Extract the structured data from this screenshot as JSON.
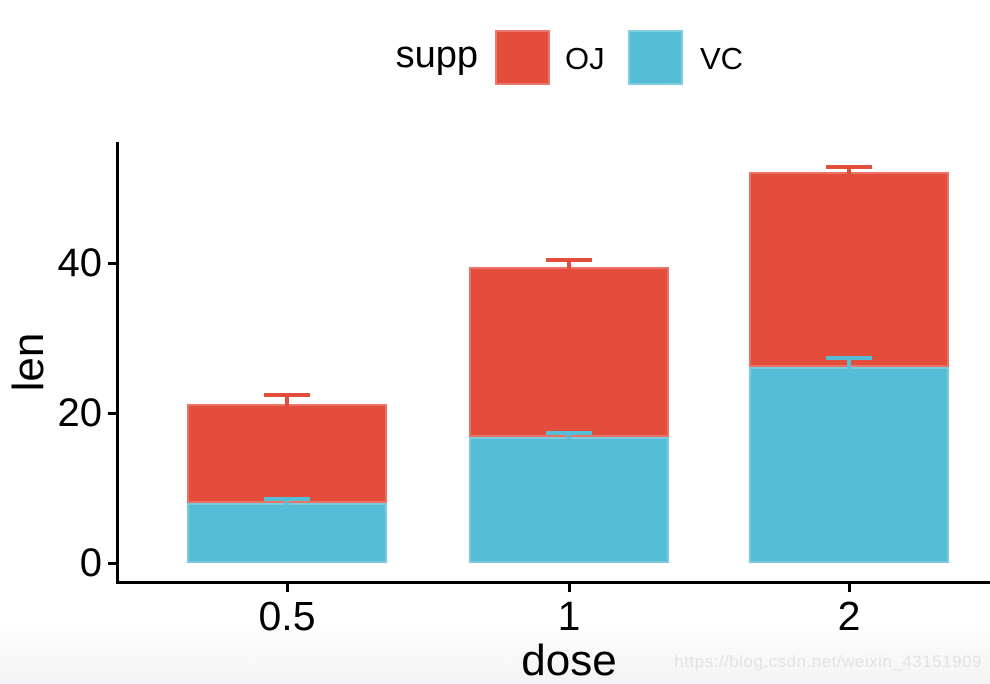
{
  "figure": {
    "background": "#ffffff",
    "watermark": "https://blog.csdn.net/weixin_43151909"
  },
  "legend": {
    "title": "supp",
    "entries": [
      {
        "label": "OJ",
        "color": "#E34D3C"
      },
      {
        "label": "VC",
        "color": "#55BDD5"
      }
    ]
  },
  "axes": {
    "x_title": "dose",
    "y_title": "len",
    "x_tick_labels": [
      "0.5",
      "1",
      "2"
    ],
    "y_tick_values": [
      0,
      20,
      40
    ],
    "axis_color": "#000000",
    "text_color": "#000000"
  },
  "chart_data": {
    "type": "bar",
    "stacked": true,
    "title": "",
    "xlabel": "dose",
    "ylabel": "len",
    "categories": [
      "0.5",
      "1",
      "2"
    ],
    "series": [
      {
        "name": "VC",
        "color": "#55BDD5",
        "values": [
          7.98,
          16.77,
          26.14
        ],
        "se": [
          0.87,
          0.8,
          1.52
        ]
      },
      {
        "name": "OJ",
        "color": "#E34D3C",
        "values": [
          13.23,
          22.7,
          26.06
        ],
        "se": [
          1.41,
          1.24,
          0.84
        ]
      }
    ],
    "stack_totals": [
      21.21,
      39.47,
      52.2
    ],
    "error_bar_style": "cap at segment top + standard error, colored by series",
    "ylim": [
      0,
      56.5
    ],
    "y_ticks": [
      0,
      20,
      40
    ],
    "grid": false,
    "legend_position": "top",
    "theme": "classic"
  }
}
